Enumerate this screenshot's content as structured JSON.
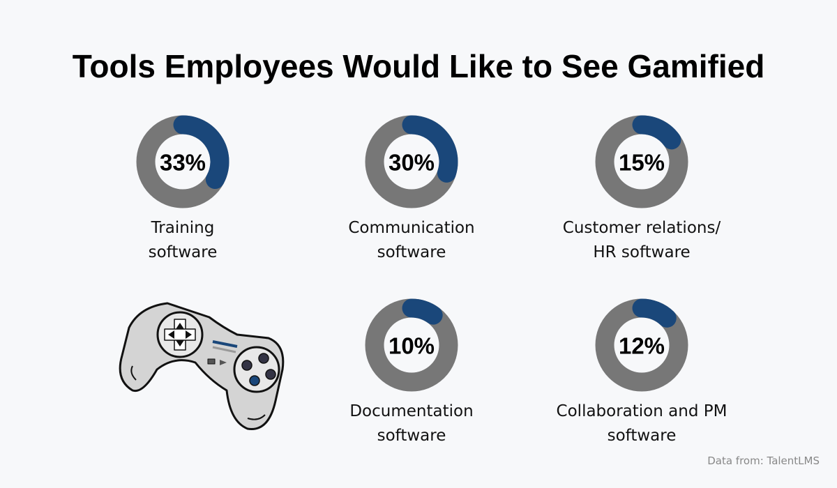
{
  "title": "Tools Employees Would Like to See Gamified",
  "source": "Data from: TalentLMS",
  "chart_data": [
    {
      "type": "donut",
      "title": "Training software",
      "values": [
        33
      ],
      "value_labels": [
        "33%"
      ],
      "color": "#1a477a",
      "track_color": "#777777"
    },
    {
      "type": "donut",
      "title": "Communication software",
      "values": [
        30
      ],
      "value_labels": [
        "30%"
      ],
      "color": "#1a477a",
      "track_color": "#777777"
    },
    {
      "type": "donut",
      "title": "Customer relations/ HR software",
      "values": [
        15
      ],
      "value_labels": [
        "15%"
      ],
      "color": "#1a477a",
      "track_color": "#777777"
    },
    {
      "type": "donut",
      "title": "Documentation software",
      "values": [
        10
      ],
      "value_labels": [
        "10%"
      ],
      "color": "#1a477a",
      "track_color": "#777777"
    },
    {
      "type": "donut",
      "title": "Collaboration and PM software",
      "values": [
        12
      ],
      "value_labels": [
        "12%"
      ],
      "color": "#1a477a",
      "track_color": "#777777"
    }
  ]
}
